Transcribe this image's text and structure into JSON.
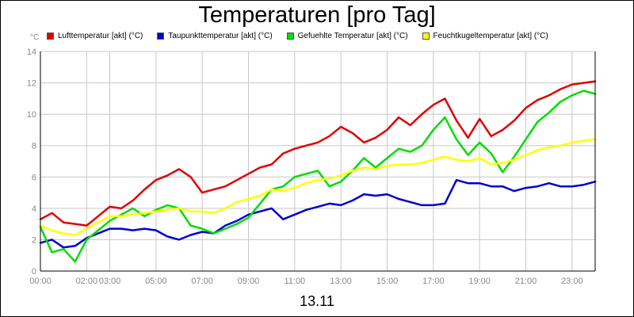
{
  "chart_data": {
    "type": "line",
    "title": "Temperaturen [pro Tag]",
    "xlabel": "13.11",
    "ylabel": "°C",
    "ylim": [
      0,
      14
    ],
    "yticks": [
      0,
      2,
      4,
      6,
      8,
      10,
      12,
      14
    ],
    "xlim": [
      0,
      24
    ],
    "xticks": [
      {
        "h": 0,
        "label": "00:00"
      },
      {
        "h": 2,
        "label": "02:00"
      },
      {
        "h": 3,
        "label": "03:00"
      },
      {
        "h": 5,
        "label": "05:00"
      },
      {
        "h": 7,
        "label": "07:00"
      },
      {
        "h": 9,
        "label": "09:00"
      },
      {
        "h": 11,
        "label": "11:00"
      },
      {
        "h": 13,
        "label": "13:00"
      },
      {
        "h": 15,
        "label": "15:00"
      },
      {
        "h": 17,
        "label": "17:00"
      },
      {
        "h": 19,
        "label": "19:00"
      },
      {
        "h": 21,
        "label": "21:00"
      },
      {
        "h": 23,
        "label": "23:00"
      }
    ],
    "grid": true,
    "legend_position": "top",
    "x": [
      0,
      0.5,
      1,
      1.5,
      2,
      2.5,
      3,
      3.5,
      4,
      4.5,
      5,
      5.5,
      6,
      6.5,
      7,
      7.5,
      8,
      8.5,
      9,
      9.5,
      10,
      10.5,
      11,
      11.5,
      12,
      12.5,
      13,
      13.5,
      14,
      14.5,
      15,
      15.5,
      16,
      16.5,
      17,
      17.5,
      18,
      18.5,
      19,
      19.5,
      20,
      20.5,
      21,
      21.5,
      22,
      22.5,
      23,
      23.5,
      24
    ],
    "series": [
      {
        "name": "Lufttemperatur [akt] (°C)",
        "color": "#e00000",
        "values": [
          3.3,
          3.7,
          3.1,
          3.0,
          2.9,
          3.5,
          4.1,
          4.0,
          4.5,
          5.2,
          5.8,
          6.1,
          6.5,
          6.0,
          5.0,
          5.2,
          5.4,
          5.8,
          6.2,
          6.6,
          6.8,
          7.5,
          7.8,
          8.0,
          8.2,
          8.6,
          9.2,
          8.8,
          8.2,
          8.5,
          9.0,
          9.8,
          9.3,
          10.0,
          10.6,
          11.0,
          9.6,
          8.5,
          9.7,
          8.6,
          9.0,
          9.6,
          10.4,
          10.9,
          11.2,
          11.6,
          11.9,
          12.0,
          12.1
        ]
      },
      {
        "name": "Taupunkttemperatur [akt] (°C)",
        "color": "#0000d0",
        "values": [
          1.8,
          2.0,
          1.5,
          1.6,
          2.1,
          2.4,
          2.7,
          2.7,
          2.6,
          2.7,
          2.6,
          2.2,
          2.0,
          2.3,
          2.5,
          2.4,
          2.9,
          3.2,
          3.6,
          3.8,
          4.0,
          3.3,
          3.6,
          3.9,
          4.1,
          4.3,
          4.2,
          4.5,
          4.9,
          4.8,
          4.9,
          4.6,
          4.4,
          4.2,
          4.2,
          4.3,
          5.8,
          5.6,
          5.6,
          5.4,
          5.4,
          5.1,
          5.3,
          5.4,
          5.6,
          5.4,
          5.4,
          5.5,
          5.7
        ]
      },
      {
        "name": "Gefuehlte Temperatur [akt] (°C)",
        "color": "#00dd00",
        "values": [
          2.8,
          1.2,
          1.4,
          0.6,
          2.0,
          2.6,
          3.2,
          3.6,
          4.0,
          3.5,
          3.9,
          4.2,
          4.0,
          2.9,
          2.7,
          2.4,
          2.7,
          3.0,
          3.4,
          4.3,
          5.2,
          5.4,
          6.0,
          6.2,
          6.4,
          5.4,
          5.7,
          6.4,
          7.2,
          6.6,
          7.2,
          7.8,
          7.6,
          8.0,
          9.0,
          9.8,
          8.4,
          7.4,
          8.2,
          7.5,
          6.3,
          7.3,
          8.4,
          9.5,
          10.1,
          10.8,
          11.2,
          11.5,
          11.3
        ]
      },
      {
        "name": "Feuchtkugeltemperatur [akt] (°C)",
        "color": "#ffff00",
        "values": [
          2.9,
          2.6,
          2.4,
          2.3,
          2.7,
          3.1,
          3.5,
          3.5,
          3.6,
          3.7,
          3.8,
          3.9,
          4.0,
          3.8,
          3.8,
          3.7,
          4.0,
          4.4,
          4.6,
          4.8,
          5.2,
          5.1,
          5.3,
          5.6,
          5.8,
          5.9,
          6.1,
          6.4,
          6.6,
          6.5,
          6.7,
          6.8,
          6.8,
          6.9,
          7.1,
          7.3,
          7.1,
          7.0,
          7.2,
          6.8,
          6.9,
          7.1,
          7.4,
          7.7,
          7.9,
          8.0,
          8.2,
          8.3,
          8.4
        ]
      }
    ]
  }
}
